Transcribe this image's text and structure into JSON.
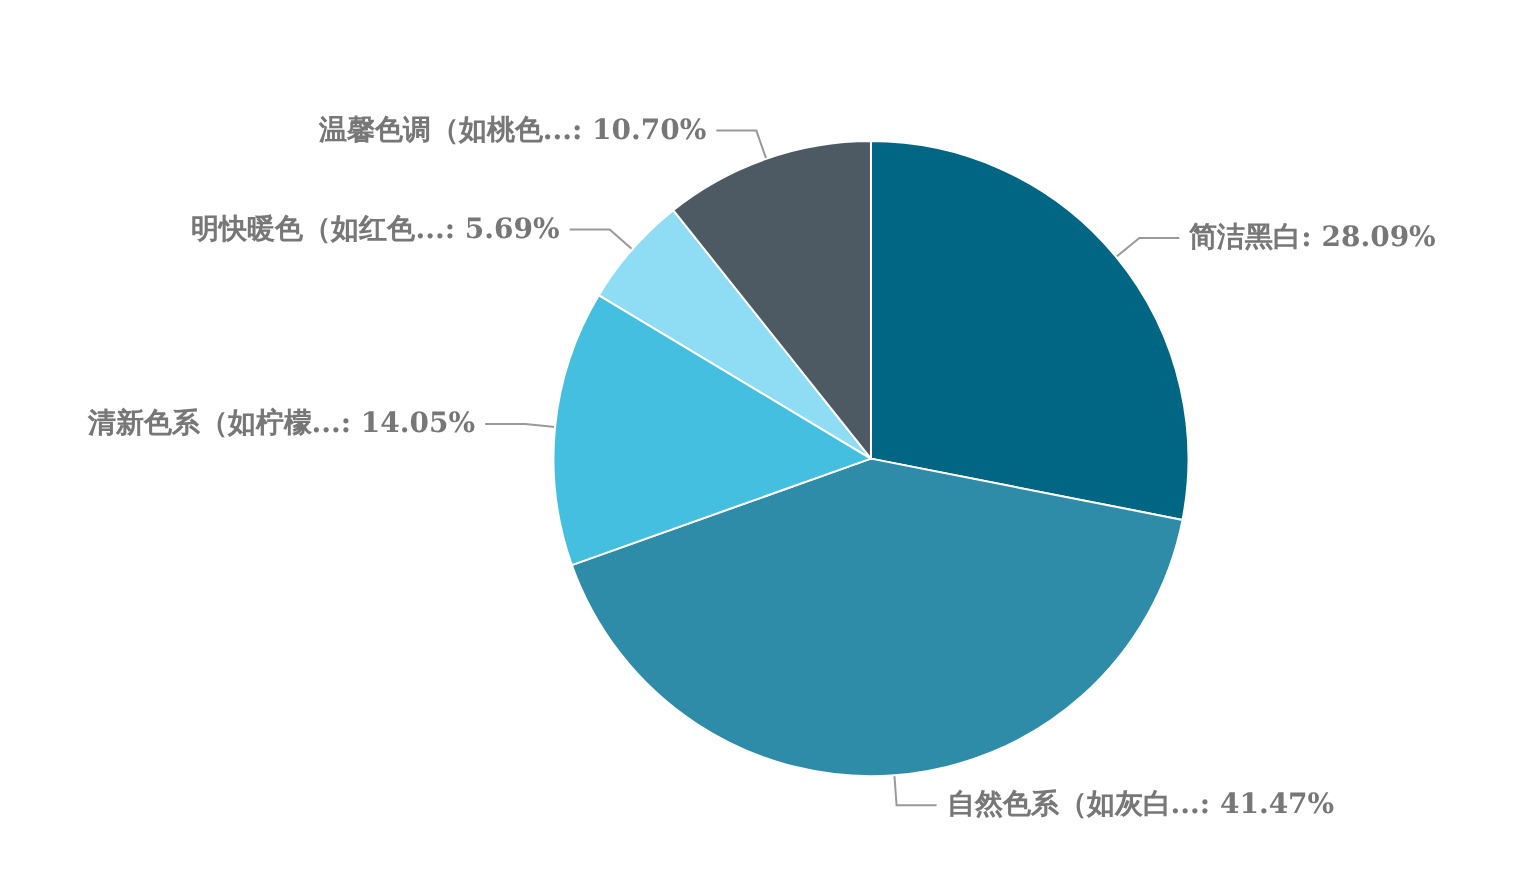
{
  "chart_data": {
    "type": "pie",
    "categories": [
      "简洁黑白",
      "自然色系（如灰白...",
      "清新色系（如柠檬...",
      "明快暖色（如红色...",
      "温馨色调（如桃色..."
    ],
    "values": [
      28.09,
      41.47,
      14.05,
      5.69,
      10.7
    ],
    "value_labels": [
      "28.09%",
      "41.47%",
      "14.05%",
      "5.69%",
      "10.70%"
    ],
    "colors": [
      "#006683",
      "#2e8ca8",
      "#45bfe0",
      "#8fdcf5",
      "#4d5a63"
    ],
    "legend": false
  }
}
